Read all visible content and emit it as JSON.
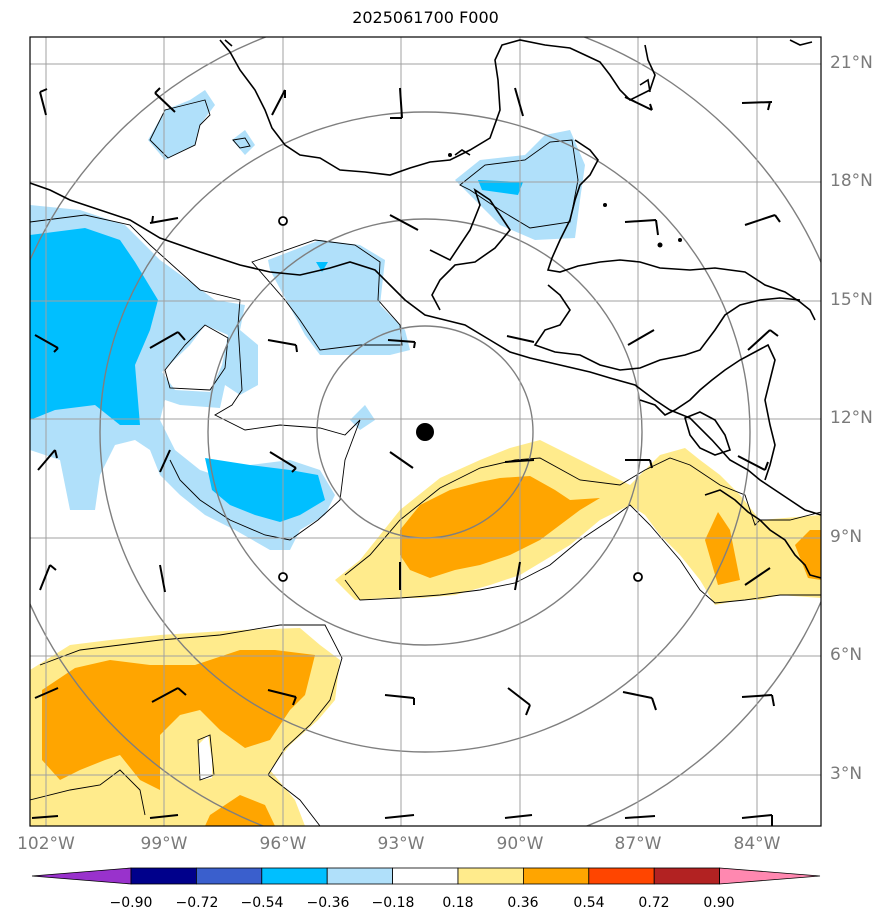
{
  "title": "2025061700 F000",
  "lat_labels": [
    "21°N",
    "18°N",
    "15°N",
    "12°N",
    "9°N",
    "6°N",
    "3°N"
  ],
  "lon_labels": [
    "102°W",
    "99°W",
    "96°W",
    "93°W",
    "90°W",
    "87°W",
    "84°W"
  ],
  "colorbar": {
    "ticks": [
      "−0.90",
      "−0.72",
      "−0.54",
      "−0.36",
      "−0.18",
      "0.18",
      "0.36",
      "0.54",
      "0.72",
      "0.90"
    ],
    "colors": [
      "#9932cc",
      "#00008b",
      "#3a5fcd",
      "#00bfff",
      "#b0e0fa",
      "#ffffff",
      "#ffeb8c",
      "#ffa500",
      "#ff4500",
      "#b22222",
      "#ff88b0"
    ]
  },
  "storm_center": {
    "lat": 11.7,
    "lon": -92.5
  },
  "chart_data": {
    "type": "heatmap",
    "title": "2025061700 F000",
    "xlim": [
      -102,
      -82
    ],
    "ylim": [
      1.8,
      21.7
    ],
    "levels": [
      -0.9,
      -0.72,
      -0.54,
      -0.36,
      -0.18,
      0.18,
      0.36,
      0.54,
      0.72,
      0.9
    ]
  }
}
